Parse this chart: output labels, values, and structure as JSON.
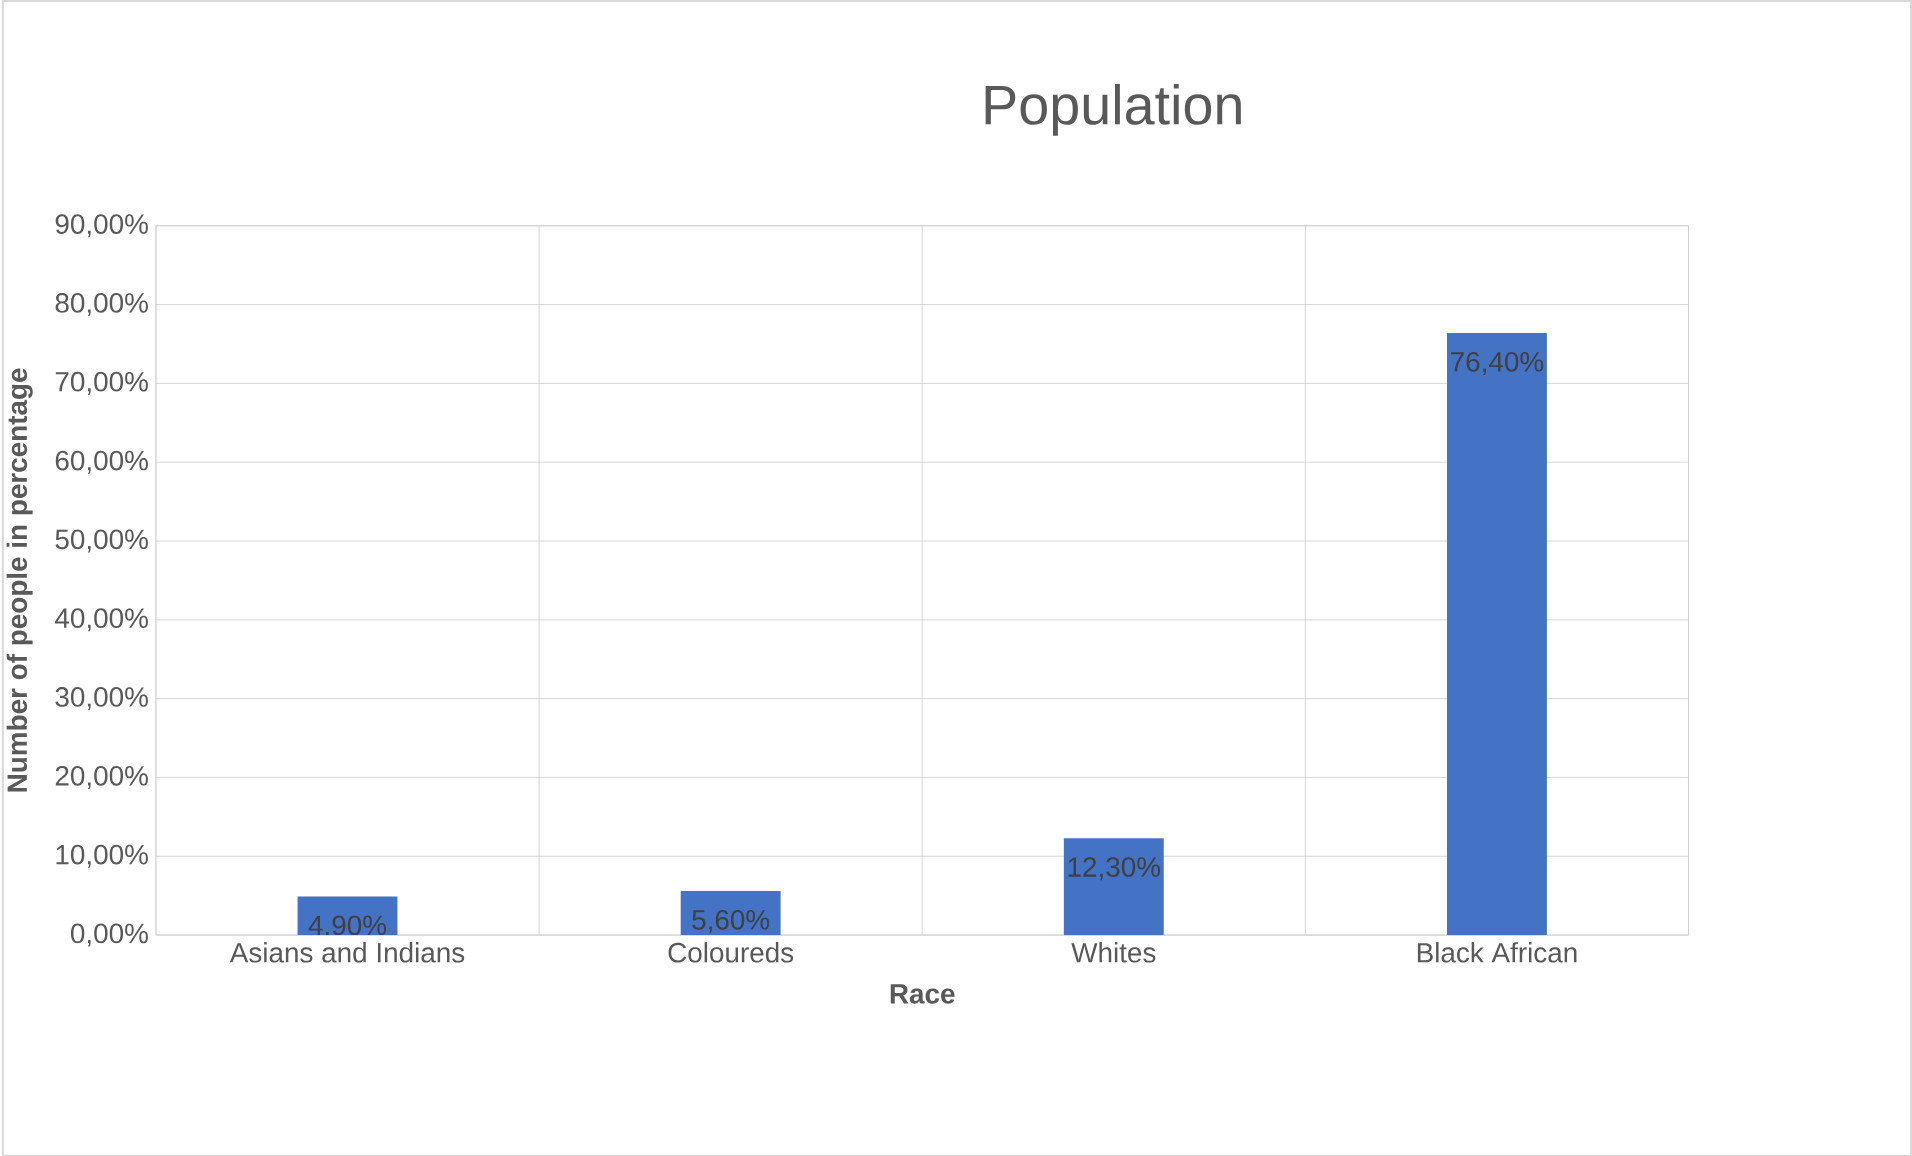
{
  "chart_data": {
    "type": "bar",
    "title": "Population",
    "xlabel": "Race",
    "ylabel": "Number of people in percentage",
    "categories": [
      "Asians and Indians",
      "Coloureds",
      "Whites",
      "Black African"
    ],
    "values": [
      4.9,
      5.6,
      12.3,
      76.4
    ],
    "color": "#4472c4",
    "value_labels": [
      "4,90%",
      "5,60%",
      "12,30%",
      "76,40%"
    ],
    "ylim": [
      0,
      90
    ],
    "yticks": [
      {
        "value": 0,
        "label": "0,00%"
      },
      {
        "value": 10,
        "label": "10,00%"
      },
      {
        "value": 20,
        "label": "20,00%"
      },
      {
        "value": 30,
        "label": "30,00%"
      },
      {
        "value": 40,
        "label": "40,00%"
      },
      {
        "value": 50,
        "label": "50,00%"
      },
      {
        "value": 60,
        "label": "60,00%"
      },
      {
        "value": 70,
        "label": "70,00%"
      },
      {
        "value": 80,
        "label": "80,00%"
      },
      {
        "value": 90,
        "label": "90,00%"
      }
    ],
    "grid": true
  }
}
